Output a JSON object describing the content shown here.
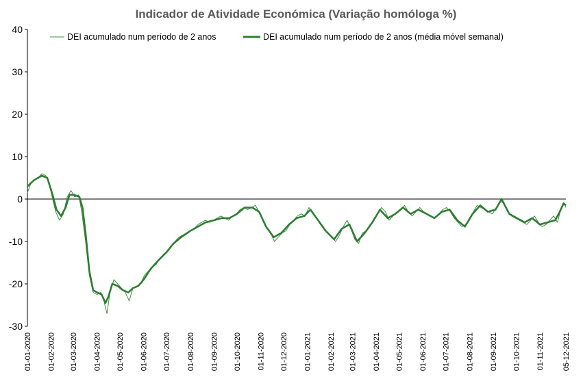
{
  "chart_data": {
    "type": "line",
    "title": "Indicador de Atividade Económica (Variação homóloga %)",
    "xlabel": "",
    "ylabel": "",
    "ylim": [
      -30,
      40
    ],
    "yticks": [
      40,
      30,
      20,
      10,
      0,
      -10,
      -20,
      -30
    ],
    "grid": false,
    "legend_position": "top-right",
    "colors": {
      "thin": "#3d8b3d",
      "thick": "#2e7d32",
      "axis": "#000000"
    },
    "x_tick_labels": [
      "01-01-2020",
      "01-02-2020",
      "01-03-2020",
      "01-04-2020",
      "01-05-2020",
      "01-06-2020",
      "01-07-2020",
      "01-08-2020",
      "01-09-2020",
      "01-10-2020",
      "01-11-2020",
      "01-12-2020",
      "01-01-2021",
      "01-02-2021",
      "01-03-2021",
      "01-04-2021",
      "01-05-2021",
      "01-06-2021",
      "01-07-2021",
      "01-08-2021",
      "01-09-2021",
      "01-10-2021",
      "01-11-2021",
      "05-12-2021"
    ],
    "series": [
      {
        "name": "DEI acumulado num período de 2 anos",
        "style": "thin",
        "points": [
          [
            "2020-01-01",
            1.5
          ],
          [
            "2020-01-05",
            3.5
          ],
          [
            "2020-01-10",
            4.5
          ],
          [
            "2020-01-15",
            5.0
          ],
          [
            "2020-01-20",
            6.0
          ],
          [
            "2020-01-25",
            5.5
          ],
          [
            "2020-01-29",
            4.0
          ],
          [
            "2020-02-03",
            0.0
          ],
          [
            "2020-02-07",
            -3.0
          ],
          [
            "2020-02-12",
            -5.0
          ],
          [
            "2020-02-17",
            -3.5
          ],
          [
            "2020-02-22",
            0.5
          ],
          [
            "2020-02-27",
            2.0
          ],
          [
            "2020-03-03",
            0.5
          ],
          [
            "2020-03-08",
            1.0
          ],
          [
            "2020-03-12",
            -3.0
          ],
          [
            "2020-03-17",
            -10.0
          ],
          [
            "2020-03-22",
            -18.0
          ],
          [
            "2020-03-27",
            -22.0
          ],
          [
            "2020-04-01",
            -22.5
          ],
          [
            "2020-04-06",
            -22.0
          ],
          [
            "2020-04-10",
            -24.0
          ],
          [
            "2020-04-14",
            -27.0
          ],
          [
            "2020-04-18",
            -22.0
          ],
          [
            "2020-04-23",
            -19.0
          ],
          [
            "2020-04-28",
            -20.0
          ],
          [
            "2020-05-03",
            -21.0
          ],
          [
            "2020-05-08",
            -22.0
          ],
          [
            "2020-05-13",
            -24.0
          ],
          [
            "2020-05-18",
            -21.0
          ],
          [
            "2020-05-23",
            -20.5
          ],
          [
            "2020-05-28",
            -20.0
          ],
          [
            "2020-06-02",
            -18.0
          ],
          [
            "2020-06-07",
            -17.0
          ],
          [
            "2020-06-12",
            -16.0
          ],
          [
            "2020-06-17",
            -15.5
          ],
          [
            "2020-06-22",
            -14.0
          ],
          [
            "2020-06-27",
            -13.0
          ],
          [
            "2020-07-02",
            -12.5
          ],
          [
            "2020-07-07",
            -11.0
          ],
          [
            "2020-07-12",
            -10.0
          ],
          [
            "2020-07-17",
            -9.0
          ],
          [
            "2020-07-22",
            -8.5
          ],
          [
            "2020-07-27",
            -8.0
          ],
          [
            "2020-08-01",
            -7.5
          ],
          [
            "2020-08-06",
            -7.0
          ],
          [
            "2020-08-11",
            -6.0
          ],
          [
            "2020-08-16",
            -5.5
          ],
          [
            "2020-08-21",
            -5.0
          ],
          [
            "2020-08-26",
            -5.5
          ],
          [
            "2020-08-31",
            -5.0
          ],
          [
            "2020-09-05",
            -4.5
          ],
          [
            "2020-09-10",
            -4.0
          ],
          [
            "2020-09-15",
            -4.5
          ],
          [
            "2020-09-20",
            -5.0
          ],
          [
            "2020-09-25",
            -4.0
          ],
          [
            "2020-09-30",
            -3.5
          ],
          [
            "2020-10-05",
            -2.5
          ],
          [
            "2020-10-10",
            -2.0
          ],
          [
            "2020-10-15",
            -2.5
          ],
          [
            "2020-10-20",
            -2.0
          ],
          [
            "2020-10-25",
            -1.5
          ],
          [
            "2020-10-30",
            -3.0
          ],
          [
            "2020-11-04",
            -5.0
          ],
          [
            "2020-11-09",
            -7.0
          ],
          [
            "2020-11-14",
            -8.0
          ],
          [
            "2020-11-19",
            -10.0
          ],
          [
            "2020-11-24",
            -9.0
          ],
          [
            "2020-11-29",
            -8.0
          ],
          [
            "2020-12-04",
            -7.5
          ],
          [
            "2020-12-09",
            -6.0
          ],
          [
            "2020-12-14",
            -5.0
          ],
          [
            "2020-12-19",
            -4.0
          ],
          [
            "2020-12-24",
            -3.5
          ],
          [
            "2020-12-29",
            -4.0
          ],
          [
            "2021-01-03",
            -2.0
          ],
          [
            "2021-01-08",
            -3.0
          ],
          [
            "2021-01-13",
            -4.5
          ],
          [
            "2021-01-18",
            -6.0
          ],
          [
            "2021-01-23",
            -7.0
          ],
          [
            "2021-01-28",
            -8.0
          ],
          [
            "2021-02-02",
            -9.0
          ],
          [
            "2021-02-07",
            -10.0
          ],
          [
            "2021-02-12",
            -8.5
          ],
          [
            "2021-02-17",
            -6.5
          ],
          [
            "2021-02-22",
            -5.0
          ],
          [
            "2021-02-27",
            -7.0
          ],
          [
            "2021-03-04",
            -9.5
          ],
          [
            "2021-03-09",
            -10.5
          ],
          [
            "2021-03-14",
            -8.0
          ],
          [
            "2021-03-19",
            -7.5
          ],
          [
            "2021-03-24",
            -6.0
          ],
          [
            "2021-03-29",
            -5.0
          ],
          [
            "2021-04-03",
            -3.5
          ],
          [
            "2021-04-08",
            -2.0
          ],
          [
            "2021-04-13",
            -3.0
          ],
          [
            "2021-04-18",
            -5.0
          ],
          [
            "2021-04-23",
            -4.0
          ],
          [
            "2021-04-28",
            -3.0
          ],
          [
            "2021-05-03",
            -2.5
          ],
          [
            "2021-05-08",
            -1.5
          ],
          [
            "2021-05-13",
            -3.0
          ],
          [
            "2021-05-18",
            -4.0
          ],
          [
            "2021-05-23",
            -3.0
          ],
          [
            "2021-05-28",
            -2.0
          ],
          [
            "2021-06-02",
            -3.0
          ],
          [
            "2021-06-07",
            -3.5
          ],
          [
            "2021-06-12",
            -4.0
          ],
          [
            "2021-06-17",
            -4.5
          ],
          [
            "2021-06-22",
            -3.5
          ],
          [
            "2021-06-27",
            -2.5
          ],
          [
            "2021-07-02",
            -2.0
          ],
          [
            "2021-07-07",
            -3.0
          ],
          [
            "2021-07-12",
            -4.5
          ],
          [
            "2021-07-17",
            -5.5
          ],
          [
            "2021-07-22",
            -6.5
          ],
          [
            "2021-07-27",
            -6.0
          ],
          [
            "2021-08-01",
            -5.0
          ],
          [
            "2021-08-06",
            -3.0
          ],
          [
            "2021-08-11",
            -1.5
          ],
          [
            "2021-08-16",
            -2.0
          ],
          [
            "2021-08-21",
            -2.5
          ],
          [
            "2021-08-26",
            -3.0
          ],
          [
            "2021-08-31",
            -3.5
          ],
          [
            "2021-09-05",
            -2.0
          ],
          [
            "2021-09-10",
            -0.5
          ],
          [
            "2021-09-15",
            -1.0
          ],
          [
            "2021-09-20",
            -3.0
          ],
          [
            "2021-09-25",
            -4.0
          ],
          [
            "2021-09-30",
            -4.5
          ],
          [
            "2021-10-05",
            -5.0
          ],
          [
            "2021-10-10",
            -5.5
          ],
          [
            "2021-10-15",
            -6.0
          ],
          [
            "2021-10-20",
            -5.0
          ],
          [
            "2021-10-25",
            -4.0
          ],
          [
            "2021-10-30",
            -5.5
          ],
          [
            "2021-11-04",
            -6.5
          ],
          [
            "2021-11-09",
            -6.0
          ],
          [
            "2021-11-14",
            -5.0
          ],
          [
            "2021-11-19",
            -4.0
          ],
          [
            "2021-11-24",
            -5.5
          ],
          [
            "2021-11-29",
            -2.0
          ],
          [
            "2021-12-02",
            -1.0
          ],
          [
            "2021-12-05",
            -2.0
          ]
        ]
      },
      {
        "name": "DEI acumulado num período de 2 anos (média móvel semanal)",
        "style": "thick",
        "points": [
          [
            "2020-01-01",
            3.0
          ],
          [
            "2020-01-10",
            4.5
          ],
          [
            "2020-01-20",
            5.5
          ],
          [
            "2020-01-27",
            5.0
          ],
          [
            "2020-02-03",
            1.0
          ],
          [
            "2020-02-08",
            -2.5
          ],
          [
            "2020-02-14",
            -4.0
          ],
          [
            "2020-02-20",
            -2.0
          ],
          [
            "2020-02-25",
            1.0
          ],
          [
            "2020-03-02",
            1.0
          ],
          [
            "2020-03-09",
            0.5
          ],
          [
            "2020-03-13",
            -2.0
          ],
          [
            "2020-03-17",
            -8.0
          ],
          [
            "2020-03-22",
            -17.0
          ],
          [
            "2020-03-27",
            -21.5
          ],
          [
            "2020-04-01",
            -22.0
          ],
          [
            "2020-04-07",
            -22.5
          ],
          [
            "2020-04-12",
            -24.5
          ],
          [
            "2020-04-16",
            -23.0
          ],
          [
            "2020-04-21",
            -20.0
          ],
          [
            "2020-04-28",
            -20.5
          ],
          [
            "2020-05-05",
            -21.5
          ],
          [
            "2020-05-12",
            -22.0
          ],
          [
            "2020-05-18",
            -21.0
          ],
          [
            "2020-05-25",
            -20.5
          ],
          [
            "2020-06-01",
            -19.0
          ],
          [
            "2020-06-10",
            -16.5
          ],
          [
            "2020-06-20",
            -14.5
          ],
          [
            "2020-07-01",
            -12.5
          ],
          [
            "2020-07-10",
            -10.5
          ],
          [
            "2020-07-20",
            -9.0
          ],
          [
            "2020-08-01",
            -7.5
          ],
          [
            "2020-08-11",
            -6.5
          ],
          [
            "2020-08-21",
            -5.5
          ],
          [
            "2020-09-01",
            -5.0
          ],
          [
            "2020-09-11",
            -4.5
          ],
          [
            "2020-09-21",
            -4.5
          ],
          [
            "2020-10-01",
            -3.5
          ],
          [
            "2020-10-11",
            -2.0
          ],
          [
            "2020-10-21",
            -2.0
          ],
          [
            "2020-10-30",
            -3.0
          ],
          [
            "2020-11-08",
            -6.5
          ],
          [
            "2020-11-18",
            -9.0
          ],
          [
            "2020-11-28",
            -8.0
          ],
          [
            "2020-12-08",
            -6.0
          ],
          [
            "2020-12-18",
            -4.5
          ],
          [
            "2020-12-28",
            -4.0
          ],
          [
            "2021-01-05",
            -2.5
          ],
          [
            "2021-01-15",
            -5.0
          ],
          [
            "2021-01-25",
            -7.5
          ],
          [
            "2021-02-05",
            -9.5
          ],
          [
            "2021-02-15",
            -7.0
          ],
          [
            "2021-02-25",
            -6.0
          ],
          [
            "2021-03-07",
            -10.0
          ],
          [
            "2021-03-17",
            -8.0
          ],
          [
            "2021-03-27",
            -5.5
          ],
          [
            "2021-04-06",
            -2.5
          ],
          [
            "2021-04-16",
            -4.5
          ],
          [
            "2021-04-26",
            -3.5
          ],
          [
            "2021-05-06",
            -2.0
          ],
          [
            "2021-05-16",
            -3.5
          ],
          [
            "2021-05-26",
            -2.5
          ],
          [
            "2021-06-06",
            -3.5
          ],
          [
            "2021-06-16",
            -4.5
          ],
          [
            "2021-06-26",
            -3.0
          ],
          [
            "2021-07-06",
            -2.5
          ],
          [
            "2021-07-16",
            -5.0
          ],
          [
            "2021-07-26",
            -6.5
          ],
          [
            "2021-08-05",
            -3.5
          ],
          [
            "2021-08-15",
            -1.5
          ],
          [
            "2021-08-25",
            -3.0
          ],
          [
            "2021-09-04",
            -2.5
          ],
          [
            "2021-09-12",
            0.0
          ],
          [
            "2021-09-22",
            -3.5
          ],
          [
            "2021-10-02",
            -4.5
          ],
          [
            "2021-10-12",
            -5.5
          ],
          [
            "2021-10-22",
            -4.5
          ],
          [
            "2021-11-01",
            -6.0
          ],
          [
            "2021-11-11",
            -5.5
          ],
          [
            "2021-11-21",
            -5.0
          ],
          [
            "2021-11-27",
            -3.0
          ],
          [
            "2021-12-02",
            -1.0
          ],
          [
            "2021-12-05",
            -1.5
          ]
        ]
      }
    ]
  }
}
